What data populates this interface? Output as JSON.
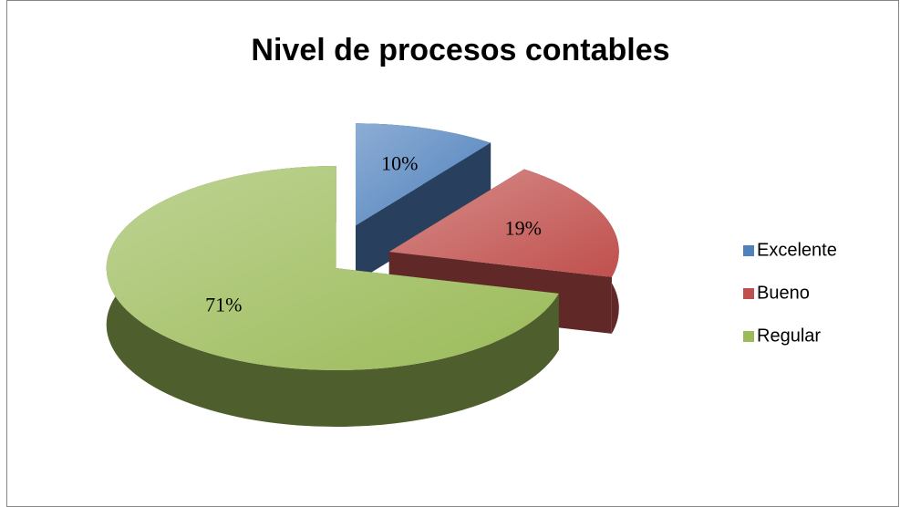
{
  "chart_data": {
    "type": "pie",
    "title": "Nivel de procesos contables",
    "categories": [
      "Excelente",
      "Bueno",
      "Regular"
    ],
    "values": [
      10,
      19,
      71
    ],
    "value_labels": [
      "10%",
      "19%",
      "71%"
    ],
    "colors": [
      "#4f81bd",
      "#c0504d",
      "#9bbb59"
    ],
    "legend": "right"
  }
}
